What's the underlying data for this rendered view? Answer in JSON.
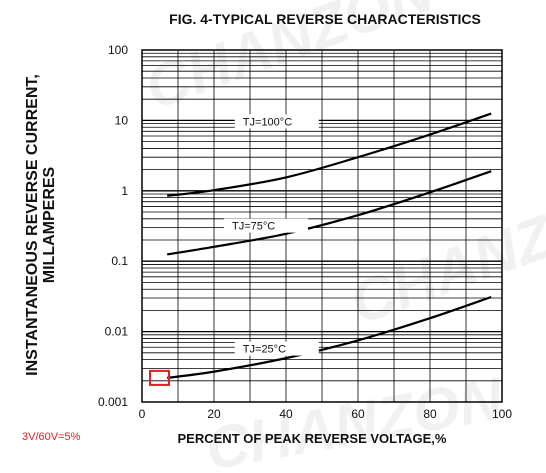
{
  "chart_data": {
    "type": "line",
    "title": "FIG. 4-TYPICAL REVERSE CHARACTERISTICS",
    "xlabel": "PERCENT OF PEAK REVERSE VOLTAGE,%",
    "ylabel_lines": [
      "INSTANTANEOUS REVERSE CURRENT,",
      "MILLAMPERES"
    ],
    "xlim": [
      0,
      100
    ],
    "ylim": [
      0.001,
      100
    ],
    "yscale": "log",
    "x_ticks": [
      "0",
      "20",
      "40",
      "60",
      "80",
      "100"
    ],
    "y_ticks": [
      "0.001",
      "0.01",
      "0.1",
      "1",
      "10",
      "100"
    ],
    "grid": true,
    "series": [
      {
        "name": "TJ=100°C",
        "x": [
          7,
          20,
          40,
          60,
          80,
          97
        ],
        "y": [
          0.85,
          1.02,
          1.55,
          3.0,
          6.3,
          12.5
        ]
      },
      {
        "name": "TJ=75°C",
        "x": [
          7,
          20,
          40,
          60,
          80,
          97
        ],
        "y": [
          0.125,
          0.16,
          0.245,
          0.45,
          0.95,
          1.9
        ]
      },
      {
        "name": "TJ=25°C",
        "x": [
          7,
          20,
          40,
          60,
          80,
          97
        ],
        "y": [
          0.0022,
          0.0027,
          0.0042,
          0.0075,
          0.0155,
          0.031
        ]
      }
    ],
    "annotation": "3V/60V=5%",
    "watermark": "CHANZON",
    "highlight_point": {
      "x": 5,
      "y": 0.0022,
      "color": "#e02020"
    },
    "colors": {
      "line": "#000000",
      "grid": "#000000",
      "annotation": "#e02020"
    }
  }
}
